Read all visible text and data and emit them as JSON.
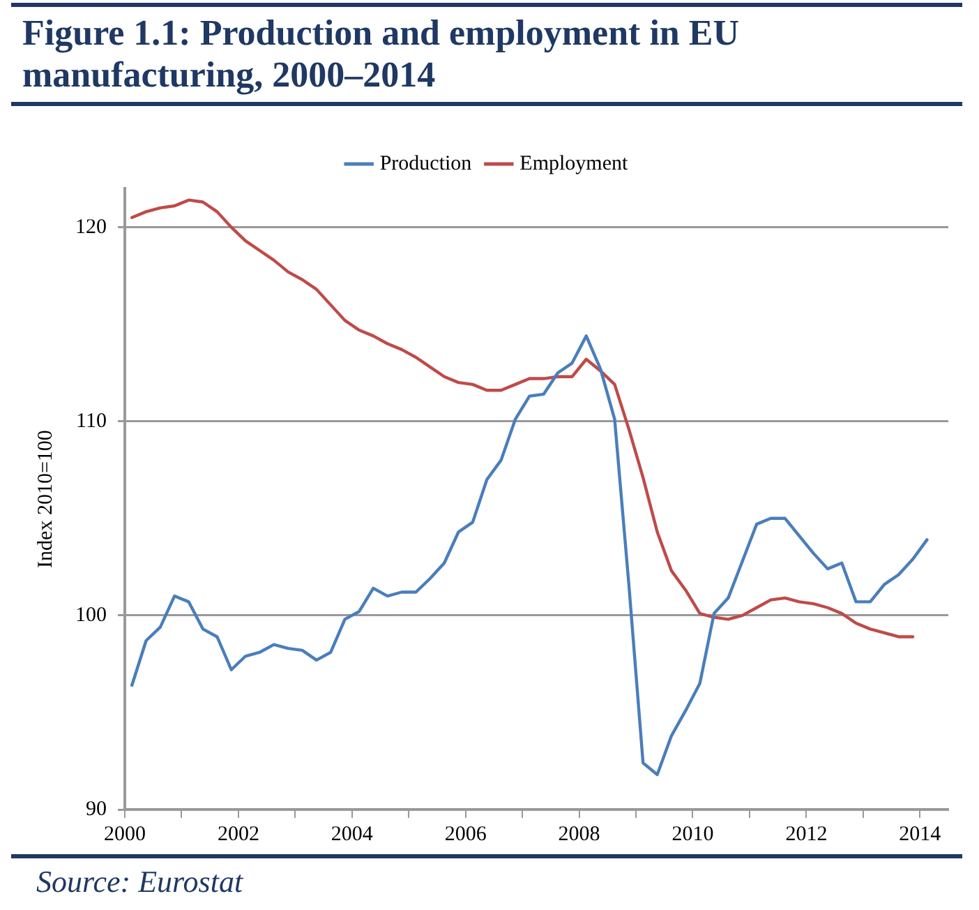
{
  "chart_data": {
    "type": "line",
    "title": "Figure 1.1: Production and employment in EU manufacturing, 2000–2014",
    "ylabel": "Index 2010=100",
    "annotations": [
      "Source: Eurostat"
    ],
    "x": [
      2000.125,
      2000.375,
      2000.625,
      2000.875,
      2001.125,
      2001.375,
      2001.625,
      2001.875,
      2002.125,
      2002.375,
      2002.625,
      2002.875,
      2003.125,
      2003.375,
      2003.625,
      2003.875,
      2004.125,
      2004.375,
      2004.625,
      2004.875,
      2005.125,
      2005.375,
      2005.625,
      2005.875,
      2006.125,
      2006.375,
      2006.625,
      2006.875,
      2007.125,
      2007.375,
      2007.625,
      2007.875,
      2008.125,
      2008.375,
      2008.625,
      2008.875,
      2009.125,
      2009.375,
      2009.625,
      2009.875,
      2010.125,
      2010.375,
      2010.625,
      2010.875,
      2011.125,
      2011.375,
      2011.625,
      2011.875,
      2012.125,
      2012.375,
      2012.625,
      2012.875,
      2013.125,
      2013.375,
      2013.625,
      2013.875,
      2014.125
    ],
    "series": [
      {
        "name": "Production",
        "color": "#4a7ebb",
        "values": [
          96.4,
          98.7,
          99.4,
          101.0,
          100.7,
          99.3,
          98.9,
          97.2,
          97.9,
          98.1,
          98.5,
          98.3,
          98.2,
          97.7,
          98.1,
          99.8,
          100.2,
          101.4,
          101.0,
          101.2,
          101.2,
          101.9,
          102.7,
          104.3,
          104.8,
          107.0,
          108.0,
          110.1,
          111.3,
          111.4,
          112.5,
          113.0,
          114.4,
          112.7,
          110.1,
          101.6,
          92.4,
          91.8,
          93.8,
          95.1,
          96.5,
          100.1,
          100.9,
          102.8,
          104.7,
          105.0,
          105.0,
          104.1,
          103.2,
          102.4,
          102.7,
          100.7,
          100.7,
          101.6,
          102.1,
          102.9,
          103.9
        ]
      },
      {
        "name": "Employment",
        "color": "#be4b48",
        "values": [
          120.5,
          120.8,
          121.0,
          121.1,
          121.4,
          121.3,
          120.8,
          120.0,
          119.3,
          118.8,
          118.3,
          117.7,
          117.3,
          116.8,
          116.0,
          115.2,
          114.7,
          114.4,
          114.0,
          113.7,
          113.3,
          112.8,
          112.3,
          112.0,
          111.9,
          111.6,
          111.6,
          111.9,
          112.2,
          112.2,
          112.3,
          112.3,
          113.2,
          112.6,
          111.9,
          109.6,
          107.1,
          104.3,
          102.3,
          101.3,
          100.1,
          99.9,
          99.8,
          100.0,
          100.4,
          100.8,
          100.9,
          100.7,
          100.6,
          100.4,
          100.1,
          99.6,
          99.3,
          99.1,
          98.9,
          98.9,
          null
        ]
      }
    ],
    "xlim": [
      2000,
      2014.5
    ],
    "xticks": [
      2000,
      {
        "value": 2001,
        "label": null
      },
      2002,
      {
        "value": 2003,
        "label": null
      },
      2004,
      {
        "value": 2005,
        "label": null
      },
      2006,
      {
        "value": 2007,
        "label": null
      },
      2008,
      {
        "value": 2009,
        "label": null
      },
      2010,
      {
        "value": 2011,
        "label": null
      },
      2012,
      {
        "value": 2013,
        "label": null
      },
      2014
    ],
    "ylim": [
      90,
      122
    ],
    "yticks": [
      90,
      100,
      110,
      120
    ],
    "grid": "y",
    "legend": "top",
    "line_style": "solid"
  }
}
